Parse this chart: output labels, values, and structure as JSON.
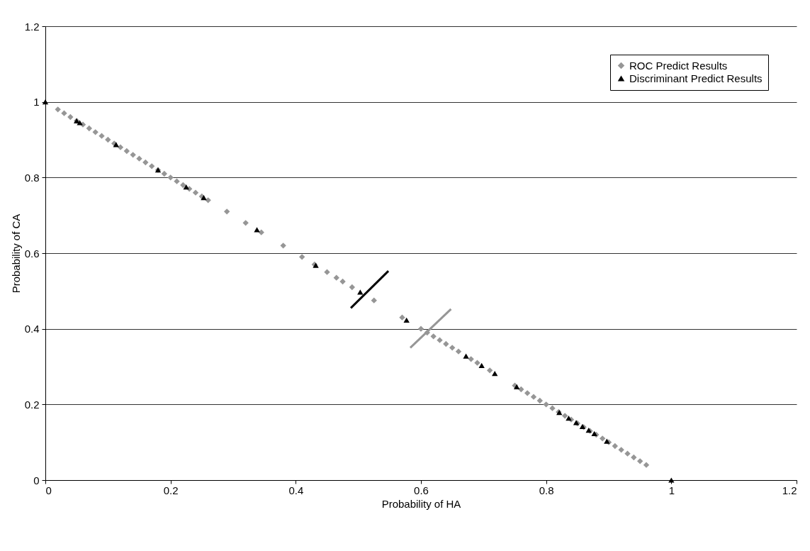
{
  "chart_data": {
    "type": "scatter",
    "xlabel": "Probability of HA",
    "ylabel": "Probability of CA",
    "xlim": [
      0,
      1.2
    ],
    "ylim": [
      0,
      1.2
    ],
    "xticks": [
      0,
      0.2,
      0.4,
      0.6,
      0.8,
      1,
      1.2
    ],
    "yticks": [
      0,
      0.2,
      0.4,
      0.6,
      0.8,
      1,
      1.2
    ],
    "grid": "y",
    "legend": "top right",
    "series": [
      {
        "name": "ROC Predict Results",
        "color": "#969696",
        "marker": "diamond",
        "x": [
          0.02,
          0.03,
          0.04,
          0.05,
          0.06,
          0.07,
          0.08,
          0.09,
          0.1,
          0.11,
          0.12,
          0.13,
          0.14,
          0.15,
          0.16,
          0.17,
          0.18,
          0.19,
          0.2,
          0.21,
          0.22,
          0.23,
          0.24,
          0.25,
          0.26,
          0.29,
          0.32,
          0.345,
          0.38,
          0.41,
          0.43,
          0.45,
          0.465,
          0.475,
          0.49,
          0.525,
          0.57,
          0.6,
          0.61,
          0.62,
          0.63,
          0.64,
          0.65,
          0.66,
          0.68,
          0.69,
          0.71,
          0.75,
          0.76,
          0.77,
          0.78,
          0.79,
          0.8,
          0.81,
          0.82,
          0.83,
          0.84,
          0.85,
          0.86,
          0.87,
          0.88,
          0.89,
          0.9,
          0.91,
          0.92,
          0.93,
          0.94,
          0.95,
          0.96
        ],
        "values": [
          0.98,
          0.97,
          0.96,
          0.95,
          0.94,
          0.93,
          0.92,
          0.91,
          0.9,
          0.89,
          0.88,
          0.87,
          0.86,
          0.85,
          0.84,
          0.83,
          0.82,
          0.81,
          0.8,
          0.79,
          0.78,
          0.77,
          0.76,
          0.75,
          0.74,
          0.71,
          0.68,
          0.655,
          0.62,
          0.59,
          0.57,
          0.55,
          0.535,
          0.525,
          0.51,
          0.475,
          0.43,
          0.4,
          0.39,
          0.38,
          0.37,
          0.36,
          0.35,
          0.34,
          0.32,
          0.31,
          0.29,
          0.25,
          0.24,
          0.23,
          0.22,
          0.21,
          0.2,
          0.19,
          0.18,
          0.17,
          0.16,
          0.15,
          0.14,
          0.13,
          0.12,
          0.11,
          0.1,
          0.09,
          0.08,
          0.07,
          0.06,
          0.05,
          0.04
        ]
      },
      {
        "name": "Discriminant Predict Results",
        "color": "#000000",
        "marker": "triangle",
        "x": [
          0,
          0.05,
          0.055,
          0.113,
          0.18,
          0.225,
          0.253,
          0.338,
          0.432,
          0.503,
          0.577,
          0.672,
          0.697,
          0.718,
          0.753,
          0.821,
          0.836,
          0.848,
          0.858,
          0.868,
          0.877,
          0.897,
          1
        ],
        "values": [
          1,
          0.95,
          0.945,
          0.887,
          0.82,
          0.775,
          0.747,
          0.662,
          0.568,
          0.497,
          0.423,
          0.328,
          0.303,
          0.282,
          0.247,
          0.179,
          0.164,
          0.152,
          0.142,
          0.132,
          0.123,
          0.103,
          0
        ]
      },
      {
        "type": "line",
        "color": "#000000",
        "x": [
          0.488,
          0.548
        ],
        "values": [
          0.455,
          0.553
        ]
      },
      {
        "type": "line",
        "color": "#969696",
        "x": [
          0.583,
          0.648
        ],
        "values": [
          0.35,
          0.452
        ]
      }
    ]
  }
}
